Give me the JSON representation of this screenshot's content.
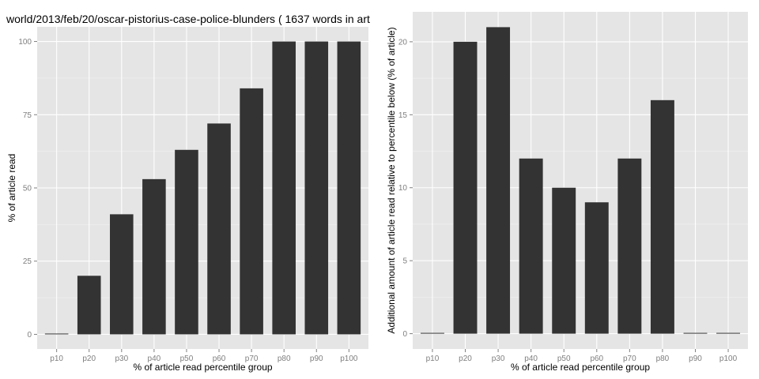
{
  "chart_data": [
    {
      "type": "bar",
      "title": "world/2013/feb/20/oscar-pistorius-case-police-blunders ( 1637 words in art",
      "xlabel": "% of article read percentile group",
      "ylabel": "% of article read",
      "categories": [
        "p10",
        "p20",
        "p30",
        "p40",
        "p50",
        "p60",
        "p70",
        "p80",
        "p90",
        "p100"
      ],
      "values": [
        0,
        20,
        41,
        53,
        63,
        72,
        84,
        100,
        100,
        100
      ],
      "ylim": [
        -5,
        105
      ],
      "yticks": [
        0,
        25,
        50,
        75,
        100
      ],
      "grid": true,
      "bar_color": "#333333",
      "panel_color": "#e5e5e5"
    },
    {
      "type": "bar",
      "title": "",
      "xlabel": "% of article read percentile group",
      "ylabel": "Additional amount of article read relative to percentile below (% of article)",
      "categories": [
        "p10",
        "p20",
        "p30",
        "p40",
        "p50",
        "p60",
        "p70",
        "p80",
        "p90",
        "p100"
      ],
      "values": [
        0,
        20,
        21,
        12,
        10,
        9,
        12,
        16,
        0,
        0
      ],
      "ylim": [
        -1.05,
        22.05
      ],
      "yticks": [
        0,
        5,
        10,
        15,
        20
      ],
      "grid": true,
      "bar_color": "#333333",
      "panel_color": "#e5e5e5"
    }
  ]
}
